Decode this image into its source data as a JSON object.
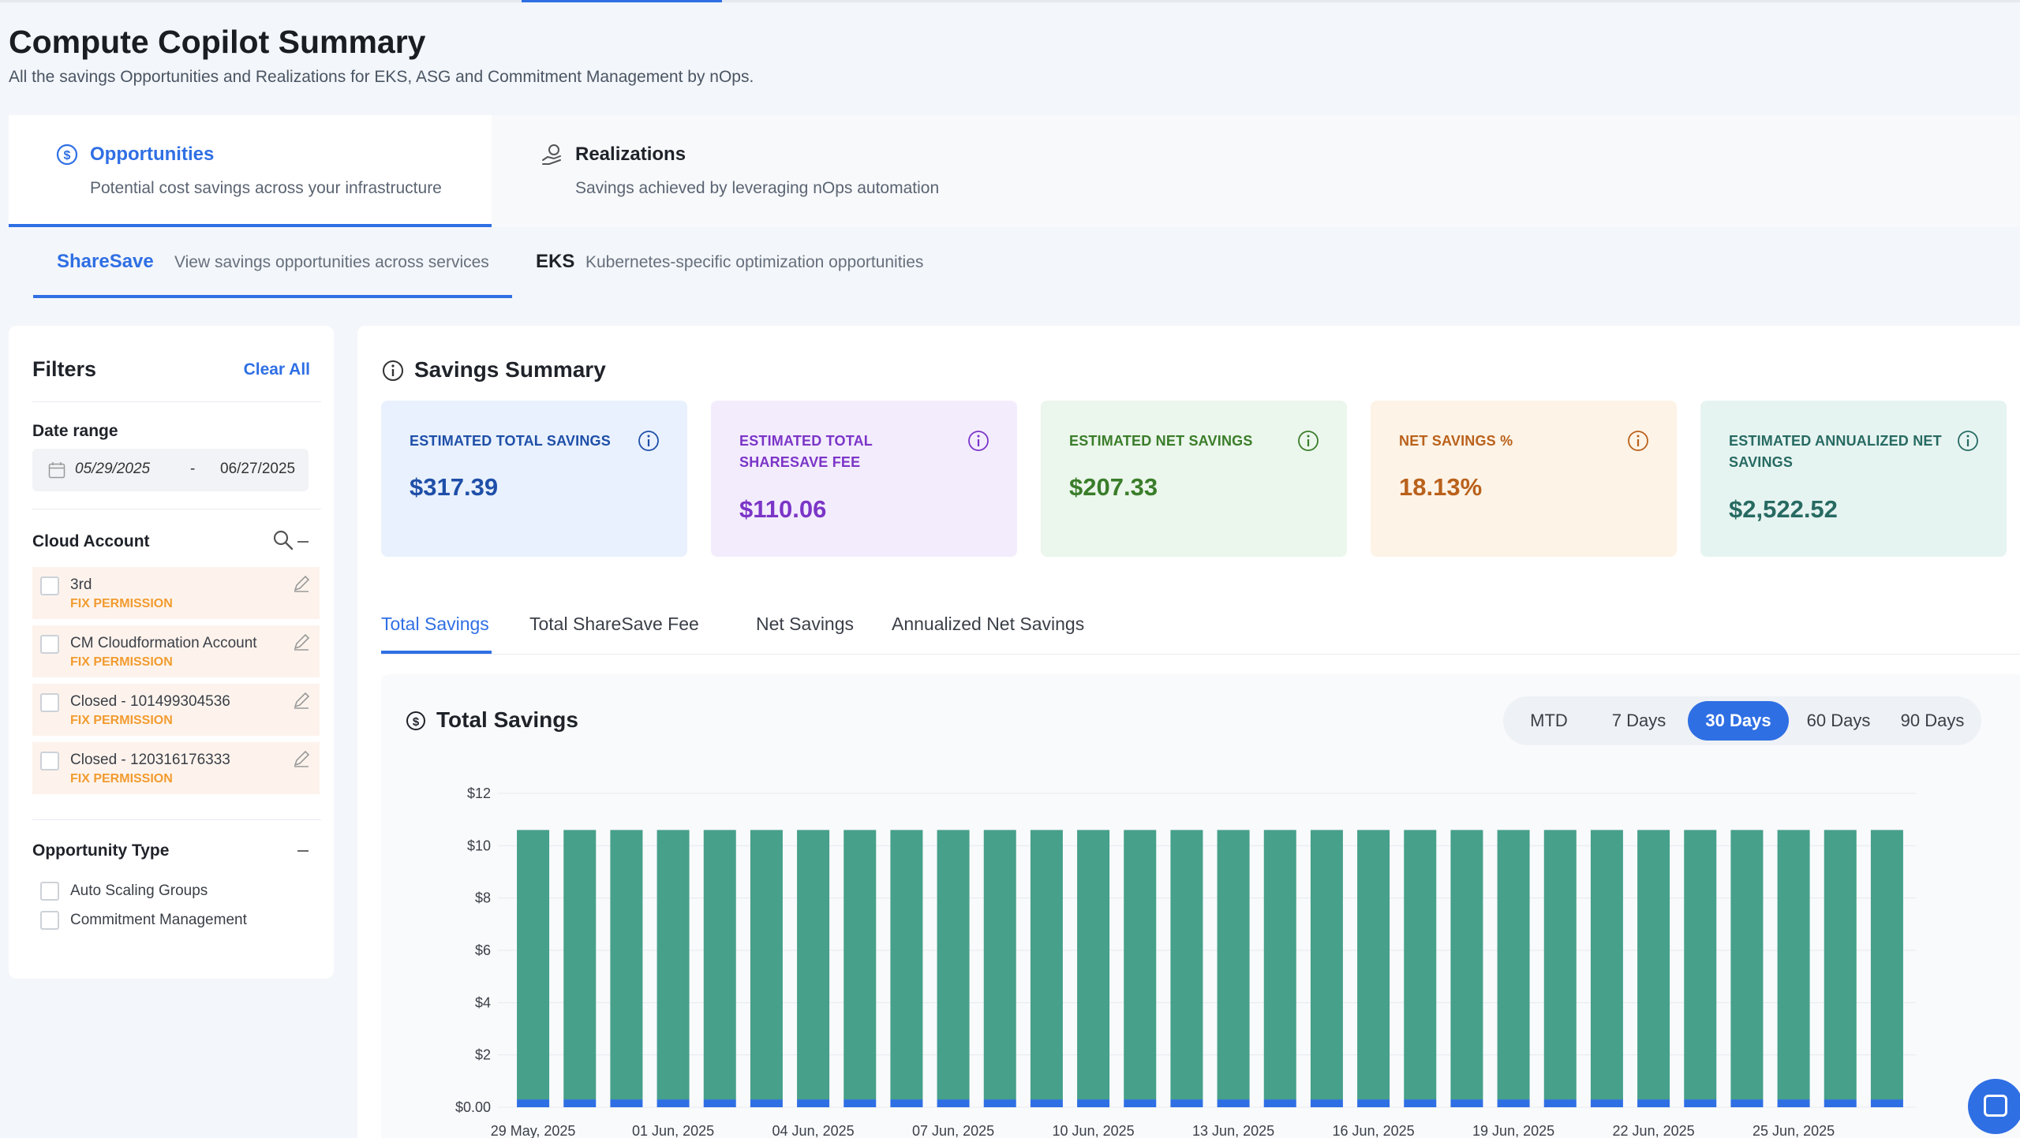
{
  "page": {
    "title": "Compute Copilot Summary",
    "subtitle": "All the savings Opportunities and Realizations for EKS, ASG and Commitment Management by nOps."
  },
  "main_tabs": [
    {
      "title": "Opportunities",
      "desc": "Potential cost savings across your infrastructure",
      "icon": "dollar-circle-icon",
      "active": true
    },
    {
      "title": "Realizations",
      "desc": "Savings achieved by leveraging nOps automation",
      "icon": "hand-coin-icon",
      "active": false
    }
  ],
  "sub_tabs": [
    {
      "name": "ShareSave",
      "desc": "View savings opportunities across services",
      "active": true
    },
    {
      "name": "EKS",
      "desc": "Kubernetes-specific optimization opportunities",
      "active": false
    }
  ],
  "filters": {
    "title": "Filters",
    "clear_all": "Clear All",
    "date_range_label": "Date range",
    "date_from": "05/29/2025",
    "date_sep": "-",
    "date_to": "06/27/2025",
    "cloud_account_label": "Cloud Account",
    "accounts": [
      {
        "name": "3rd",
        "status": "FIX PERMISSION"
      },
      {
        "name": "CM Cloudformation Account",
        "status": "FIX PERMISSION"
      },
      {
        "name": "Closed - 101499304536",
        "status": "FIX PERMISSION"
      },
      {
        "name": "Closed - 120316176333",
        "status": "FIX PERMISSION"
      }
    ],
    "opportunity_type_label": "Opportunity Type",
    "opportunity_types": [
      "Auto Scaling Groups",
      "Commitment Management"
    ]
  },
  "summary": {
    "title": "Savings Summary",
    "cards": [
      {
        "label": "ESTIMATED TOTAL SAVINGS",
        "value": "$317.39",
        "bg": "#e8f1fd",
        "color": "#1f4fa8"
      },
      {
        "label": "ESTIMATED TOTAL SHARESAVE FEE",
        "value": "$110.06",
        "bg": "#f3ecfd",
        "color": "#7b35c7"
      },
      {
        "label": "ESTIMATED NET SAVINGS",
        "value": "$207.33",
        "bg": "#ebf6ec",
        "color": "#3a7d2a"
      },
      {
        "label": "NET SAVINGS %",
        "value": "18.13%",
        "bg": "#fdf3e6",
        "color": "#b9611c"
      },
      {
        "label": "ESTIMATED ANNUALIZED NET SAVINGS",
        "value": "$2,522.52",
        "bg": "#e6f4f1",
        "color": "#276a62"
      }
    ]
  },
  "metric_tabs": [
    {
      "label": "Total Savings",
      "active": true
    },
    {
      "label": "Total ShareSave Fee",
      "active": false
    },
    {
      "label": "Net Savings",
      "active": false
    },
    {
      "label": "Annualized Net Savings",
      "active": false
    }
  ],
  "chart_card": {
    "title": "Total Savings",
    "ranges": [
      {
        "label": "MTD",
        "active": false
      },
      {
        "label": "7 Days",
        "active": false
      },
      {
        "label": "30 Days",
        "active": true
      },
      {
        "label": "60 Days",
        "active": false
      },
      {
        "label": "90 Days",
        "active": false
      }
    ]
  },
  "chart_data": {
    "type": "bar",
    "stacked": true,
    "title": "Total Savings",
    "ylim": [
      0,
      12
    ],
    "y_ticks": [
      "$0.00",
      "$2",
      "$4",
      "$6",
      "$8",
      "$10",
      "$12"
    ],
    "y_tick_values": [
      0,
      2,
      4,
      6,
      8,
      10,
      12
    ],
    "x_tick_labels": [
      "29 May, 2025",
      "01 Jun, 2025",
      "04 Jun, 2025",
      "07 Jun, 2025",
      "10 Jun, 2025",
      "13 Jun, 2025",
      "16 Jun, 2025",
      "19 Jun, 2025",
      "22 Jun, 2025",
      "25 Jun, 2025"
    ],
    "categories": [
      "29 May, 2025",
      "30 May, 2025",
      "31 May, 2025",
      "01 Jun, 2025",
      "02 Jun, 2025",
      "03 Jun, 2025",
      "04 Jun, 2025",
      "05 Jun, 2025",
      "06 Jun, 2025",
      "07 Jun, 2025",
      "08 Jun, 2025",
      "09 Jun, 2025",
      "10 Jun, 2025",
      "11 Jun, 2025",
      "12 Jun, 2025",
      "13 Jun, 2025",
      "14 Jun, 2025",
      "15 Jun, 2025",
      "16 Jun, 2025",
      "17 Jun, 2025",
      "18 Jun, 2025",
      "19 Jun, 2025",
      "20 Jun, 2025",
      "21 Jun, 2025",
      "22 Jun, 2025",
      "23 Jun, 2025",
      "24 Jun, 2025",
      "25 Jun, 2025",
      "26 Jun, 2025",
      "27 Jun, 2025"
    ],
    "series": [
      {
        "color": "#2f6fe4",
        "values": [
          0.3,
          0.3,
          0.3,
          0.3,
          0.3,
          0.3,
          0.3,
          0.3,
          0.3,
          0.3,
          0.3,
          0.3,
          0.3,
          0.3,
          0.3,
          0.3,
          0.3,
          0.3,
          0.3,
          0.3,
          0.3,
          0.3,
          0.3,
          0.3,
          0.3,
          0.3,
          0.3,
          0.3,
          0.3,
          0.3
        ]
      },
      {
        "color": "#46a08a",
        "values": [
          10.3,
          10.3,
          10.3,
          10.3,
          10.3,
          10.3,
          10.3,
          10.3,
          10.3,
          10.3,
          10.3,
          10.3,
          10.3,
          10.3,
          10.3,
          10.3,
          10.3,
          10.3,
          10.3,
          10.3,
          10.3,
          10.3,
          10.3,
          10.3,
          10.3,
          10.3,
          10.3,
          10.3,
          10.3,
          10.3
        ]
      }
    ],
    "grid": true,
    "legend": "none"
  }
}
